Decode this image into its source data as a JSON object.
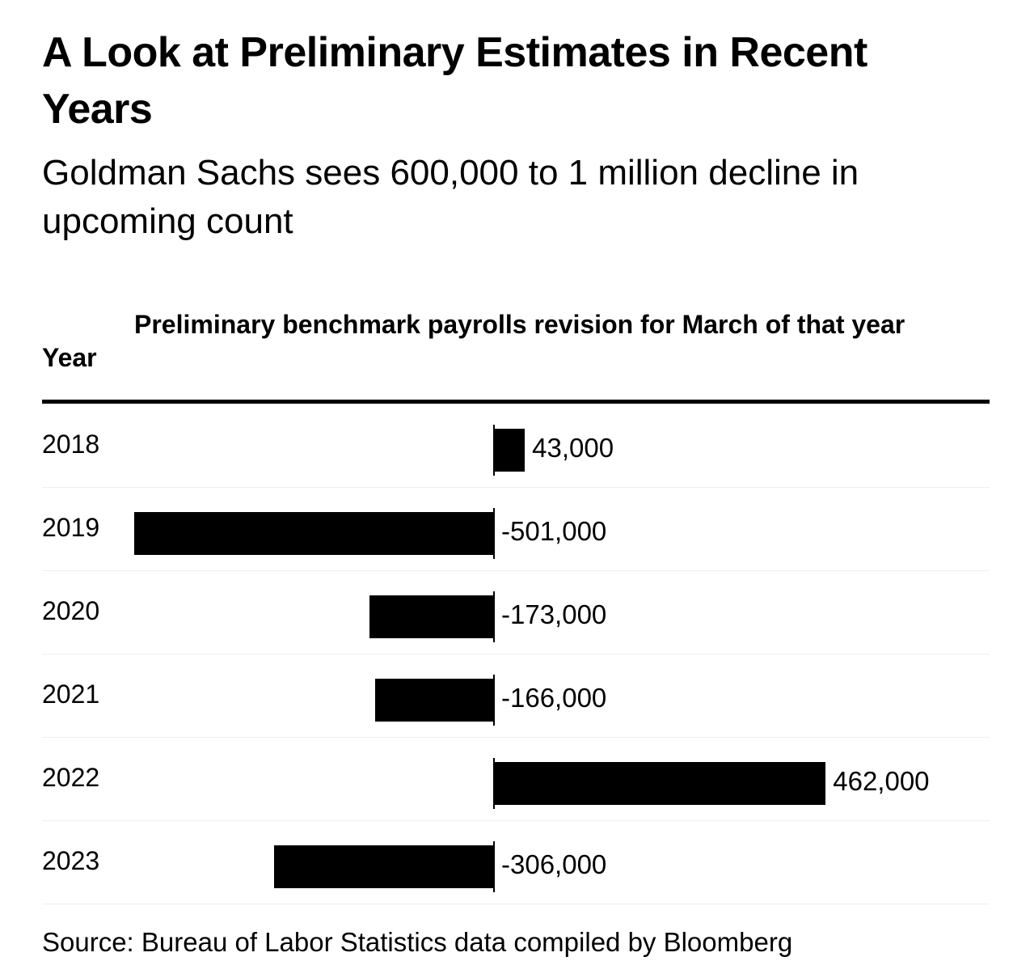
{
  "title": "A Look at Preliminary Estimates in Recent Years",
  "subtitle": "Goldman Sachs sees 600,000 to 1 million decline in upcoming count",
  "source": "Source: Bureau of Labor Statistics data compiled by Bloomberg",
  "chart_data": {
    "type": "table",
    "columns": [
      "Year",
      "Preliminary benchmark payrolls revision for March of that year"
    ],
    "categories": [
      "2018",
      "2019",
      "2020",
      "2021",
      "2022",
      "2023"
    ],
    "values": [
      43000,
      -501000,
      -173000,
      -166000,
      462000,
      -306000
    ],
    "labels": [
      "43,000",
      "-501,000",
      "-173,000",
      "-166,000",
      "462,000",
      "-306,000"
    ],
    "bar_color": "#000000"
  }
}
